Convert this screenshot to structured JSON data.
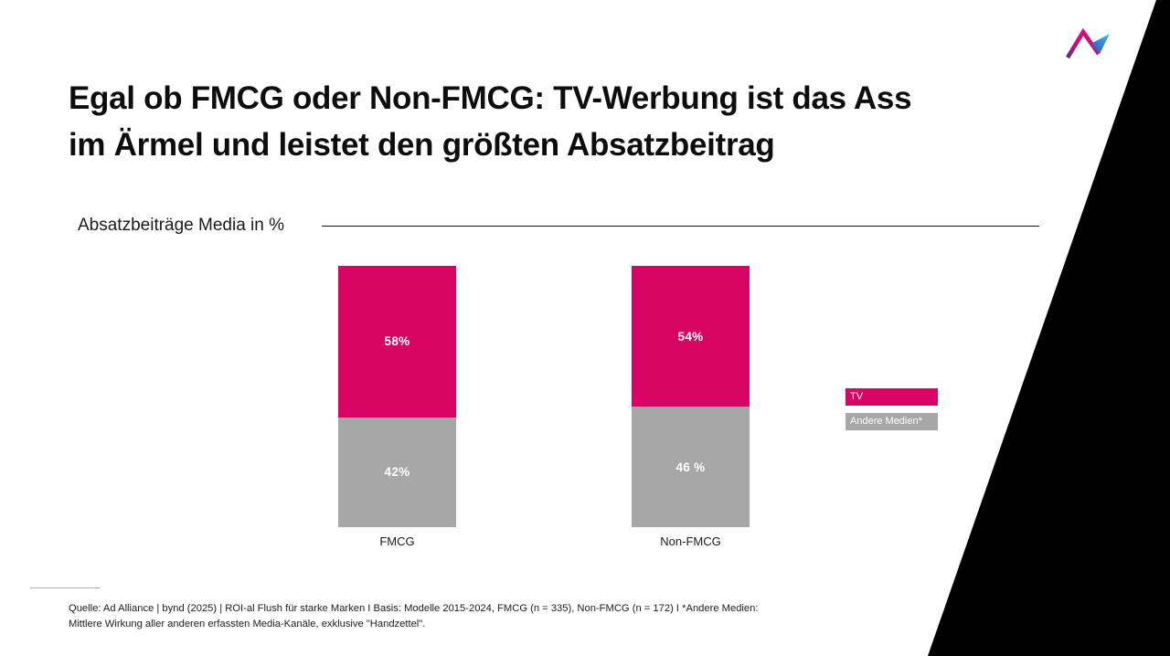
{
  "slide": {
    "title_line1": "Egal ob FMCG oder Non-FMCG: TV-Werbung ist das Ass",
    "title_line2": "im Ärmel und leistet den größten Absatzbeitrag"
  },
  "chart": {
    "section_label": "Absatzbeiträge Media in %",
    "legend": [
      {
        "label": "TV",
        "color": "#d80465"
      },
      {
        "label": "Andere Medien*",
        "color": "#a7a7a7"
      }
    ]
  },
  "chart_data": {
    "type": "bar",
    "stacked": true,
    "title": "Absatzbeiträge Media in %",
    "categories": [
      "FMCG",
      "Non-FMCG"
    ],
    "series": [
      {
        "name": "TV",
        "values": [
          58,
          54
        ],
        "labels": [
          "58%",
          "54%"
        ],
        "color": "#d80465"
      },
      {
        "name": "Andere Medien*",
        "values": [
          42,
          46
        ],
        "labels": [
          "42%",
          "46 %"
        ],
        "color": "#a7a7a7"
      }
    ],
    "unit": "%",
    "ylim": [
      0,
      100
    ],
    "grid": false,
    "legend_position": "right",
    "value_labels": "inside-center"
  },
  "footer": {
    "line1": "Quelle: Ad Alliance | bynd (2025) | ROI-al Flush für starke Marken I Basis: Modelle 2015-2024, FMCG (n = 335), Non-FMCG (n = 172) I *Andere Medien:",
    "line2": "Mittlere Wirkung aller anderen erfassten Media-Kanäle, exklusive \"Handzettel\"."
  },
  "colors": {
    "tv_pink": "#d80465",
    "other_media_gray": "#a7a7a7",
    "wedge_black": "#000000",
    "logo_purple": "#5f2c88",
    "logo_magenta": "#e00a6e",
    "logo_blue": "#3346bb",
    "logo_cyan": "#38c3ea"
  }
}
